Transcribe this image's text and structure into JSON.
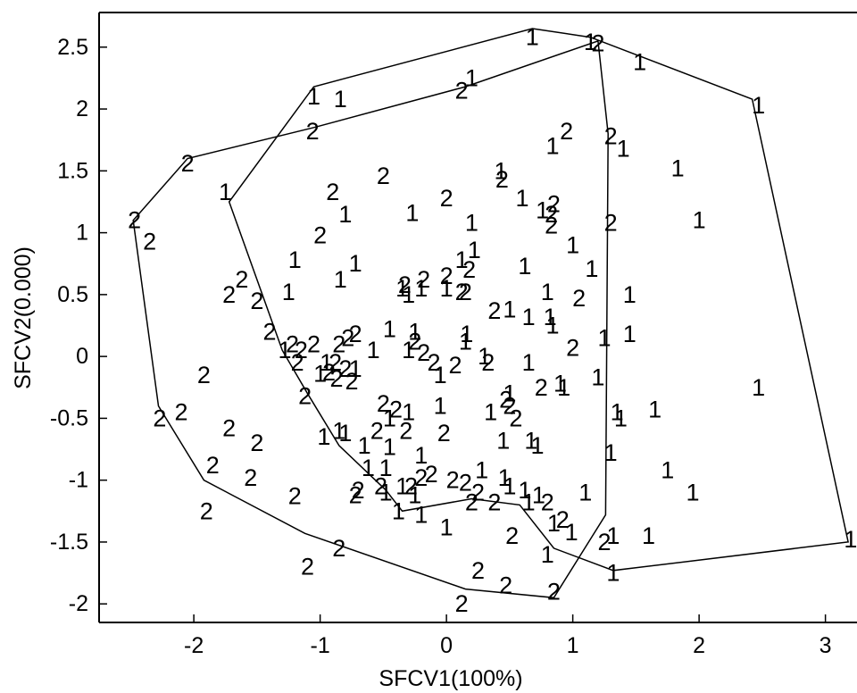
{
  "chart_data": {
    "type": "scatter",
    "title": "",
    "xlabel": "SFCV1(100%)",
    "ylabel": "SFCV2(0.000)",
    "xlim": [
      -2.75,
      3.25
    ],
    "ylim": [
      -2.15,
      2.78
    ],
    "xticks": [
      -2,
      -1,
      0,
      1,
      2,
      3
    ],
    "yticks": [
      2.5,
      2,
      1.5,
      1,
      0.5,
      0,
      -0.5,
      -1,
      -1.5,
      -2
    ],
    "grid": false,
    "legend": "none",
    "marker_style": "text",
    "series": [
      {
        "name": "1",
        "marker": "1",
        "color": "#000000",
        "points": [
          [
            0.68,
            2.58
          ],
          [
            1.14,
            2.54
          ],
          [
            1.53,
            2.38
          ],
          [
            0.2,
            2.25
          ],
          [
            -1.05,
            2.1
          ],
          [
            -0.84,
            2.08
          ],
          [
            2.47,
            2.03
          ],
          [
            0.84,
            1.7
          ],
          [
            1.4,
            1.68
          ],
          [
            1.83,
            1.52
          ],
          [
            0.43,
            1.5
          ],
          [
            -1.75,
            1.33
          ],
          [
            0.6,
            1.28
          ],
          [
            0.76,
            1.18
          ],
          [
            -0.27,
            1.16
          ],
          [
            -0.8,
            1.15
          ],
          [
            0.2,
            1.08
          ],
          [
            2.0,
            1.1
          ],
          [
            1.0,
            0.9
          ],
          [
            0.22,
            0.86
          ],
          [
            -1.2,
            0.78
          ],
          [
            0.12,
            0.78
          ],
          [
            -0.72,
            0.75
          ],
          [
            0.62,
            0.73
          ],
          [
            1.15,
            0.71
          ],
          [
            -0.84,
            0.62
          ],
          [
            -0.35,
            0.55
          ],
          [
            -0.2,
            0.55
          ],
          [
            -0.3,
            0.5
          ],
          [
            0.0,
            0.55
          ],
          [
            -1.25,
            0.52
          ],
          [
            0.8,
            0.52
          ],
          [
            1.45,
            0.5
          ],
          [
            0.5,
            0.38
          ],
          [
            0.65,
            0.32
          ],
          [
            0.82,
            0.32
          ],
          [
            0.84,
            0.25
          ],
          [
            -0.45,
            0.22
          ],
          [
            -0.25,
            0.2
          ],
          [
            0.16,
            0.18
          ],
          [
            1.25,
            0.15
          ],
          [
            1.45,
            0.18
          ],
          [
            0.15,
            0.12
          ],
          [
            -1.28,
            0.05
          ],
          [
            -0.58,
            0.05
          ],
          [
            -0.3,
            0.05
          ],
          [
            0.3,
            0.0
          ],
          [
            -0.95,
            -0.05
          ],
          [
            0.65,
            -0.05
          ],
          [
            -0.72,
            -0.1
          ],
          [
            -1.0,
            -0.14
          ],
          [
            0.9,
            -0.22
          ],
          [
            -0.05,
            -0.15
          ],
          [
            1.2,
            -0.17
          ],
          [
            0.93,
            -0.25
          ],
          [
            2.47,
            -0.25
          ],
          [
            0.5,
            -0.3
          ],
          [
            -0.05,
            -0.4
          ],
          [
            -0.3,
            -0.45
          ],
          [
            0.35,
            -0.45
          ],
          [
            1.35,
            -0.45
          ],
          [
            1.65,
            -0.43
          ],
          [
            1.38,
            -0.5
          ],
          [
            -0.45,
            -0.5
          ],
          [
            -0.85,
            -0.6
          ],
          [
            -0.8,
            -0.62
          ],
          [
            -0.97,
            -0.65
          ],
          [
            -0.65,
            -0.72
          ],
          [
            0.45,
            -0.68
          ],
          [
            0.67,
            -0.68
          ],
          [
            0.72,
            -0.72
          ],
          [
            -0.45,
            -0.73
          ],
          [
            -0.2,
            -0.8
          ],
          [
            1.3,
            -0.78
          ],
          [
            -0.62,
            -0.9
          ],
          [
            -0.48,
            -0.9
          ],
          [
            0.28,
            -0.92
          ],
          [
            1.75,
            -0.92
          ],
          [
            0.46,
            -0.98
          ],
          [
            0.5,
            -1.05
          ],
          [
            -0.35,
            -1.05
          ],
          [
            0.62,
            -1.08
          ],
          [
            -0.48,
            -1.1
          ],
          [
            1.1,
            -1.1
          ],
          [
            1.95,
            -1.1
          ],
          [
            -0.25,
            -1.12
          ],
          [
            0.73,
            -1.12
          ],
          [
            0.65,
            -1.18
          ],
          [
            -0.38,
            -1.25
          ],
          [
            -0.2,
            -1.28
          ],
          [
            0.85,
            -1.35
          ],
          [
            0.0,
            -1.38
          ],
          [
            0.99,
            -1.42
          ],
          [
            1.32,
            -1.45
          ],
          [
            1.6,
            -1.45
          ],
          [
            0.8,
            -1.6
          ],
          [
            1.32,
            -1.75
          ],
          [
            3.2,
            -1.48
          ]
        ]
      },
      {
        "name": "2",
        "marker": "2",
        "color": "#000000",
        "points": [
          [
            1.2,
            2.53
          ],
          [
            0.12,
            2.15
          ],
          [
            -1.06,
            1.82
          ],
          [
            0.95,
            1.82
          ],
          [
            1.3,
            1.78
          ],
          [
            -2.05,
            1.56
          ],
          [
            -0.5,
            1.46
          ],
          [
            0.44,
            1.43
          ],
          [
            -0.9,
            1.33
          ],
          [
            0.0,
            1.28
          ],
          [
            0.85,
            1.23
          ],
          [
            0.83,
            1.15
          ],
          [
            -2.47,
            1.1
          ],
          [
            1.3,
            1.08
          ],
          [
            0.83,
            1.06
          ],
          [
            -2.35,
            0.93
          ],
          [
            -1.0,
            0.98
          ],
          [
            0.18,
            0.7
          ],
          [
            0.0,
            0.65
          ],
          [
            -1.62,
            0.62
          ],
          [
            -0.18,
            0.62
          ],
          [
            -0.33,
            0.58
          ],
          [
            0.12,
            0.52
          ],
          [
            -1.72,
            0.5
          ],
          [
            0.15,
            0.52
          ],
          [
            1.05,
            0.47
          ],
          [
            -1.5,
            0.45
          ],
          [
            0.38,
            0.37
          ],
          [
            -1.4,
            0.2
          ],
          [
            -0.72,
            0.18
          ],
          [
            -0.78,
            0.15
          ],
          [
            -1.05,
            0.1
          ],
          [
            -0.85,
            0.1
          ],
          [
            -1.22,
            0.1
          ],
          [
            -0.25,
            0.12
          ],
          [
            -1.15,
            0.05
          ],
          [
            -0.18,
            0.03
          ],
          [
            0.07,
            -0.07
          ],
          [
            1.0,
            0.07
          ],
          [
            -0.1,
            -0.05
          ],
          [
            -1.18,
            -0.05
          ],
          [
            -0.88,
            -0.05
          ],
          [
            -0.8,
            -0.1
          ],
          [
            -0.87,
            -0.18
          ],
          [
            -0.93,
            -0.13
          ],
          [
            -0.75,
            -0.2
          ],
          [
            0.33,
            -0.05
          ],
          [
            -1.92,
            -0.15
          ],
          [
            0.75,
            -0.25
          ],
          [
            -1.12,
            -0.32
          ],
          [
            0.47,
            -0.35
          ],
          [
            -0.5,
            -0.38
          ],
          [
            -0.4,
            -0.43
          ],
          [
            0.5,
            -0.4
          ],
          [
            -2.1,
            -0.45
          ],
          [
            -2.27,
            -0.5
          ],
          [
            0.55,
            -0.5
          ],
          [
            -1.72,
            -0.58
          ],
          [
            -0.55,
            -0.6
          ],
          [
            -0.32,
            -0.6
          ],
          [
            -0.02,
            -0.62
          ],
          [
            -1.5,
            -0.7
          ],
          [
            -1.85,
            -0.88
          ],
          [
            -1.55,
            -0.98
          ],
          [
            -0.7,
            -1.08
          ],
          [
            -0.2,
            -0.98
          ],
          [
            -0.12,
            -0.95
          ],
          [
            0.05,
            -1.0
          ],
          [
            0.15,
            -1.02
          ],
          [
            -0.52,
            -1.05
          ],
          [
            -0.72,
            -1.12
          ],
          [
            -0.28,
            -1.05
          ],
          [
            0.25,
            -1.1
          ],
          [
            0.2,
            -1.18
          ],
          [
            -1.2,
            -1.13
          ],
          [
            0.38,
            -1.18
          ],
          [
            0.8,
            -1.18
          ],
          [
            -1.9,
            -1.25
          ],
          [
            0.92,
            -1.32
          ],
          [
            0.52,
            -1.45
          ],
          [
            1.25,
            -1.5
          ],
          [
            -0.85,
            -1.55
          ],
          [
            -1.1,
            -1.7
          ],
          [
            0.25,
            -1.73
          ],
          [
            0.47,
            -1.85
          ],
          [
            0.12,
            -2.0
          ],
          [
            0.85,
            -1.9
          ]
        ]
      }
    ],
    "hulls": [
      {
        "name": "1",
        "vertices": [
          [
            0.68,
            2.65
          ],
          [
            1.14,
            2.58
          ],
          [
            2.42,
            2.08
          ],
          [
            3.18,
            -1.5
          ],
          [
            1.32,
            -1.73
          ],
          [
            0.85,
            -1.55
          ],
          [
            0.58,
            -1.2
          ],
          [
            0.2,
            -1.15
          ],
          [
            -0.35,
            -1.25
          ],
          [
            -0.48,
            -1.08
          ],
          [
            -0.85,
            -0.72
          ],
          [
            -1.1,
            -0.3
          ],
          [
            -1.3,
            0.05
          ],
          [
            -1.72,
            1.25
          ],
          [
            -1.05,
            2.18
          ]
        ]
      },
      {
        "name": "2",
        "vertices": [
          [
            1.2,
            2.55
          ],
          [
            1.28,
            1.8
          ],
          [
            1.26,
            -1.28
          ],
          [
            0.85,
            -1.95
          ],
          [
            0.15,
            -1.88
          ],
          [
            -1.12,
            -1.43
          ],
          [
            -1.92,
            -1.0
          ],
          [
            -2.28,
            -0.4
          ],
          [
            -2.48,
            1.1
          ],
          [
            -2.05,
            1.6
          ],
          [
            -1.05,
            1.85
          ],
          [
            0.15,
            2.18
          ]
        ]
      }
    ]
  }
}
